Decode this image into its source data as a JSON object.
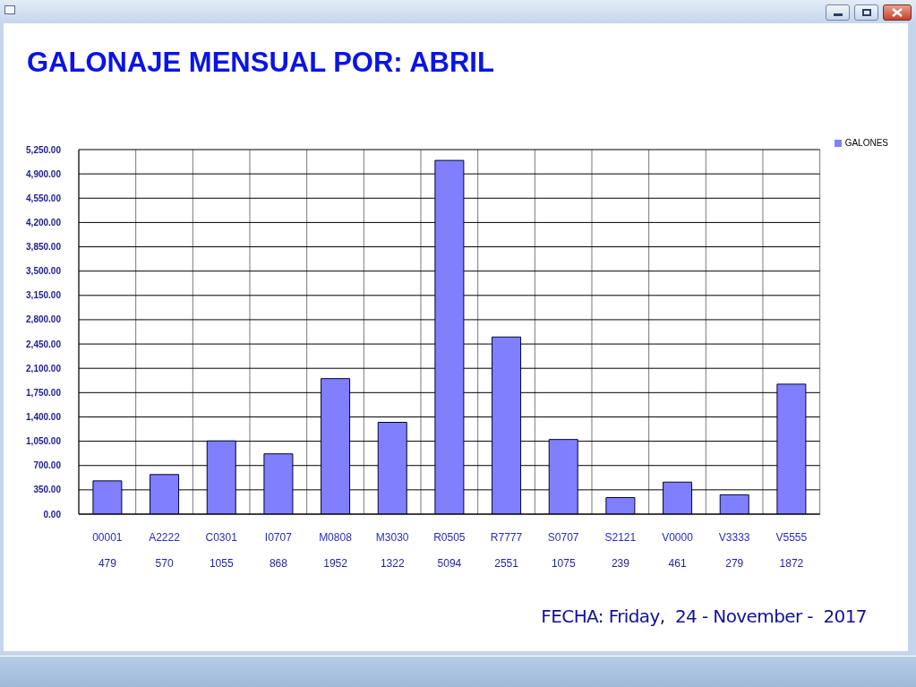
{
  "chart_data": {
    "type": "bar",
    "title": "GALONAJE MENSUAL POR: ABRIL",
    "categories": [
      "00001",
      "A2222",
      "C0301",
      "I0707",
      "M0808",
      "M3030",
      "R0505",
      "R7777",
      "S0707",
      "S2121",
      "V0000",
      "V3333",
      "V5555"
    ],
    "series": [
      {
        "name": "GALONES",
        "color": "#8080ff",
        "values": [
          479,
          570,
          1055,
          868,
          1952,
          1322,
          5094,
          2551,
          1075,
          239,
          461,
          279,
          1872
        ]
      }
    ],
    "ylim": [
      0,
      5250
    ],
    "yticks": [
      {
        "value": 0,
        "label": "0.00"
      },
      {
        "value": 350,
        "label": "350.00"
      },
      {
        "value": 700,
        "label": "700.00"
      },
      {
        "value": 1050,
        "label": "1,050.00"
      },
      {
        "value": 1400,
        "label": "1,400.00"
      },
      {
        "value": 1750,
        "label": "1,750.00"
      },
      {
        "value": 2100,
        "label": "2,100.00"
      },
      {
        "value": 2450,
        "label": "2,450.00"
      },
      {
        "value": 2800,
        "label": "2,800.00"
      },
      {
        "value": 3150,
        "label": "3,150.00"
      },
      {
        "value": 3500,
        "label": "3,500.00"
      },
      {
        "value": 3850,
        "label": "3,850.00"
      },
      {
        "value": 4200,
        "label": "4,200.00"
      },
      {
        "value": 4550,
        "label": "4,550.00"
      },
      {
        "value": 4900,
        "label": "4,900.00"
      },
      {
        "value": 5250,
        "label": "5,250.00"
      }
    ],
    "grid": true,
    "legend": "top right",
    "data_labels": true,
    "annotations": [
      "FECHA: Friday,  24 - November -  2017"
    ]
  }
}
